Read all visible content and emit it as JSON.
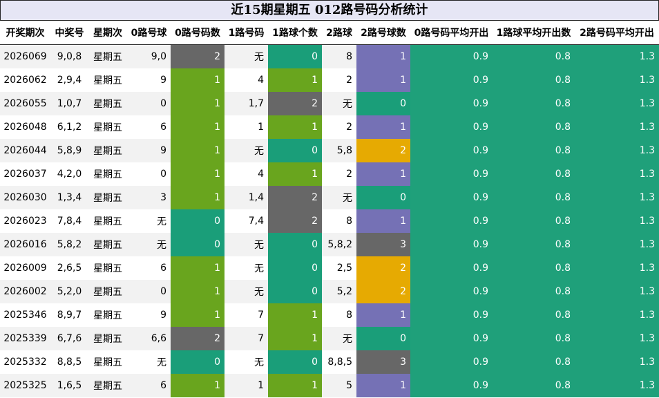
{
  "title": "近15期星期五 012路号码分析统计",
  "columns": [
    "开奖期次",
    "中奖号",
    "星期次",
    "0路号球",
    "0路号码数",
    "1路号码",
    "1路球个数",
    "2路球",
    "2路号球数",
    "0路号码平均开出",
    "1路球平均开出数",
    "2路号码平均开出"
  ],
  "count_colors": {
    "0": "#1a9e79",
    "1": "#69a51e",
    "2": "#676767",
    "3": "#676767"
  },
  "count2_colors": {
    "0": "#1a9e79",
    "1": "#7571b5",
    "2": "#e6aa02",
    "3": "#676767"
  },
  "avg_color": "#1fa07a",
  "rows": [
    {
      "issue": "2026069",
      "nums": "9,0,8",
      "day": "星期五",
      "r0": "9,0",
      "c0": "2",
      "r1": "无",
      "c1": "0",
      "r2": "8",
      "c2": "1",
      "a0": "0.9",
      "a1": "0.8",
      "a2": "1.3"
    },
    {
      "issue": "2026062",
      "nums": "2,9,4",
      "day": "星期五",
      "r0": "9",
      "c0": "1",
      "r1": "4",
      "c1": "1",
      "r2": "2",
      "c2": "1",
      "a0": "0.9",
      "a1": "0.8",
      "a2": "1.3"
    },
    {
      "issue": "2026055",
      "nums": "1,0,7",
      "day": "星期五",
      "r0": "0",
      "c0": "1",
      "r1": "1,7",
      "c1": "2",
      "r2": "无",
      "c2": "0",
      "a0": "0.9",
      "a1": "0.8",
      "a2": "1.3"
    },
    {
      "issue": "2026048",
      "nums": "6,1,2",
      "day": "星期五",
      "r0": "6",
      "c0": "1",
      "r1": "1",
      "c1": "1",
      "r2": "2",
      "c2": "1",
      "a0": "0.9",
      "a1": "0.8",
      "a2": "1.3"
    },
    {
      "issue": "2026044",
      "nums": "5,8,9",
      "day": "星期五",
      "r0": "9",
      "c0": "1",
      "r1": "无",
      "c1": "0",
      "r2": "5,8",
      "c2": "2",
      "a0": "0.9",
      "a1": "0.8",
      "a2": "1.3"
    },
    {
      "issue": "2026037",
      "nums": "4,2,0",
      "day": "星期五",
      "r0": "0",
      "c0": "1",
      "r1": "4",
      "c1": "1",
      "r2": "2",
      "c2": "1",
      "a0": "0.9",
      "a1": "0.8",
      "a2": "1.3"
    },
    {
      "issue": "2026030",
      "nums": "1,3,4",
      "day": "星期五",
      "r0": "3",
      "c0": "1",
      "r1": "1,4",
      "c1": "2",
      "r2": "无",
      "c2": "0",
      "a0": "0.9",
      "a1": "0.8",
      "a2": "1.3"
    },
    {
      "issue": "2026023",
      "nums": "7,8,4",
      "day": "星期五",
      "r0": "无",
      "c0": "0",
      "r1": "7,4",
      "c1": "2",
      "r2": "8",
      "c2": "1",
      "a0": "0.9",
      "a1": "0.8",
      "a2": "1.3"
    },
    {
      "issue": "2026016",
      "nums": "5,8,2",
      "day": "星期五",
      "r0": "无",
      "c0": "0",
      "r1": "无",
      "c1": "0",
      "r2": "5,8,2",
      "c2": "3",
      "a0": "0.9",
      "a1": "0.8",
      "a2": "1.3"
    },
    {
      "issue": "2026009",
      "nums": "2,6,5",
      "day": "星期五",
      "r0": "6",
      "c0": "1",
      "r1": "无",
      "c1": "0",
      "r2": "2,5",
      "c2": "2",
      "a0": "0.9",
      "a1": "0.8",
      "a2": "1.3"
    },
    {
      "issue": "2026002",
      "nums": "5,2,0",
      "day": "星期五",
      "r0": "0",
      "c0": "1",
      "r1": "无",
      "c1": "0",
      "r2": "5,2",
      "c2": "2",
      "a0": "0.9",
      "a1": "0.8",
      "a2": "1.3"
    },
    {
      "issue": "2025346",
      "nums": "8,9,7",
      "day": "星期五",
      "r0": "9",
      "c0": "1",
      "r1": "7",
      "c1": "1",
      "r2": "8",
      "c2": "1",
      "a0": "0.9",
      "a1": "0.8",
      "a2": "1.3"
    },
    {
      "issue": "2025339",
      "nums": "6,7,6",
      "day": "星期五",
      "r0": "6,6",
      "c0": "2",
      "r1": "7",
      "c1": "1",
      "r2": "无",
      "c2": "0",
      "a0": "0.9",
      "a1": "0.8",
      "a2": "1.3"
    },
    {
      "issue": "2025332",
      "nums": "8,8,5",
      "day": "星期五",
      "r0": "无",
      "c0": "0",
      "r1": "无",
      "c1": "0",
      "r2": "8,8,5",
      "c2": "3",
      "a0": "0.9",
      "a1": "0.8",
      "a2": "1.3"
    },
    {
      "issue": "2025325",
      "nums": "1,6,5",
      "day": "星期五",
      "r0": "6",
      "c0": "1",
      "r1": "1",
      "c1": "1",
      "r2": "5",
      "c2": "1",
      "a0": "0.9",
      "a1": "0.8",
      "a2": "1.3"
    }
  ],
  "chart_data": {
    "type": "table",
    "title": "近15期星期五 012路号码分析统计",
    "columns": [
      "开奖期次",
      "中奖号",
      "星期次",
      "0路号球",
      "0路号码数",
      "1路号码",
      "1路球个数",
      "2路球",
      "2路号球数",
      "0路号码平均开出",
      "1路球平均开出数",
      "2路号码平均开出"
    ],
    "rows": [
      [
        "2026069",
        "9,0,8",
        "星期五",
        "9,0",
        2,
        "无",
        0,
        "8",
        1,
        0.9,
        0.8,
        1.3
      ],
      [
        "2026062",
        "2,9,4",
        "星期五",
        "9",
        1,
        "4",
        1,
        "2",
        1,
        0.9,
        0.8,
        1.3
      ],
      [
        "2026055",
        "1,0,7",
        "星期五",
        "0",
        1,
        "1,7",
        2,
        "无",
        0,
        0.9,
        0.8,
        1.3
      ],
      [
        "2026048",
        "6,1,2",
        "星期五",
        "6",
        1,
        "1",
        1,
        "2",
        1,
        0.9,
        0.8,
        1.3
      ],
      [
        "2026044",
        "5,8,9",
        "星期五",
        "9",
        1,
        "无",
        0,
        "5,8",
        2,
        0.9,
        0.8,
        1.3
      ],
      [
        "2026037",
        "4,2,0",
        "星期五",
        "0",
        1,
        "4",
        1,
        "2",
        1,
        0.9,
        0.8,
        1.3
      ],
      [
        "2026030",
        "1,3,4",
        "星期五",
        "3",
        1,
        "1,4",
        2,
        "无",
        0,
        0.9,
        0.8,
        1.3
      ],
      [
        "2026023",
        "7,8,4",
        "星期五",
        "无",
        0,
        "7,4",
        2,
        "8",
        1,
        0.9,
        0.8,
        1.3
      ],
      [
        "2026016",
        "5,8,2",
        "星期五",
        "无",
        0,
        "无",
        0,
        "5,8,2",
        3,
        0.9,
        0.8,
        1.3
      ],
      [
        "2026009",
        "2,6,5",
        "星期五",
        "6",
        1,
        "无",
        0,
        "2,5",
        2,
        0.9,
        0.8,
        1.3
      ],
      [
        "2026002",
        "5,2,0",
        "星期五",
        "0",
        1,
        "无",
        0,
        "5,2",
        2,
        0.9,
        0.8,
        1.3
      ],
      [
        "2025346",
        "8,9,7",
        "星期五",
        "9",
        1,
        "7",
        1,
        "8",
        1,
        0.9,
        0.8,
        1.3
      ],
      [
        "2025339",
        "6,7,6",
        "星期五",
        "6,6",
        2,
        "7",
        1,
        "无",
        0,
        0.9,
        0.8,
        1.3
      ],
      [
        "2025332",
        "8,8,5",
        "星期五",
        "无",
        0,
        "无",
        0,
        "8,8,5",
        3,
        0.9,
        0.8,
        1.3
      ],
      [
        "2025325",
        "1,6,5",
        "星期五",
        "6",
        1,
        "1",
        1,
        "5",
        1,
        0.9,
        0.8,
        1.3
      ]
    ]
  }
}
